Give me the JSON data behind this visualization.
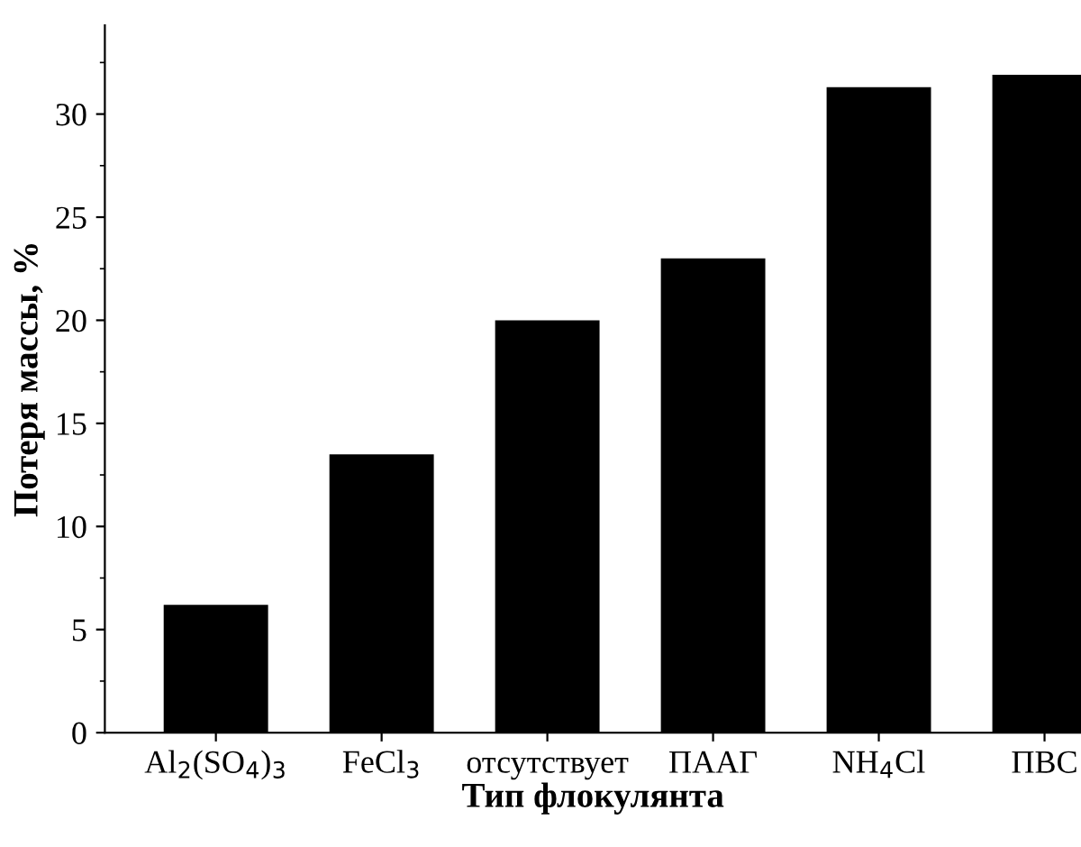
{
  "chart_data": {
    "type": "bar",
    "xlabel": "Тип флокулянта",
    "ylabel": "Потеря массы, %",
    "categories": [
      "Al$_{2}$(SO$_{4}$)$_{3}$",
      "FeCl$_{3}$",
      "отсутствует",
      "ПААГ",
      "NH$_{4}$Cl",
      "ПВС"
    ],
    "values": [
      6.2,
      13.5,
      20.0,
      23.0,
      31.3,
      31.9
    ],
    "color": "#000000",
    "ylim": [
      0,
      34.3
    ],
    "yticks": [
      0,
      5,
      10,
      15,
      20,
      25,
      30
    ],
    "grid": false,
    "legend": false
  }
}
